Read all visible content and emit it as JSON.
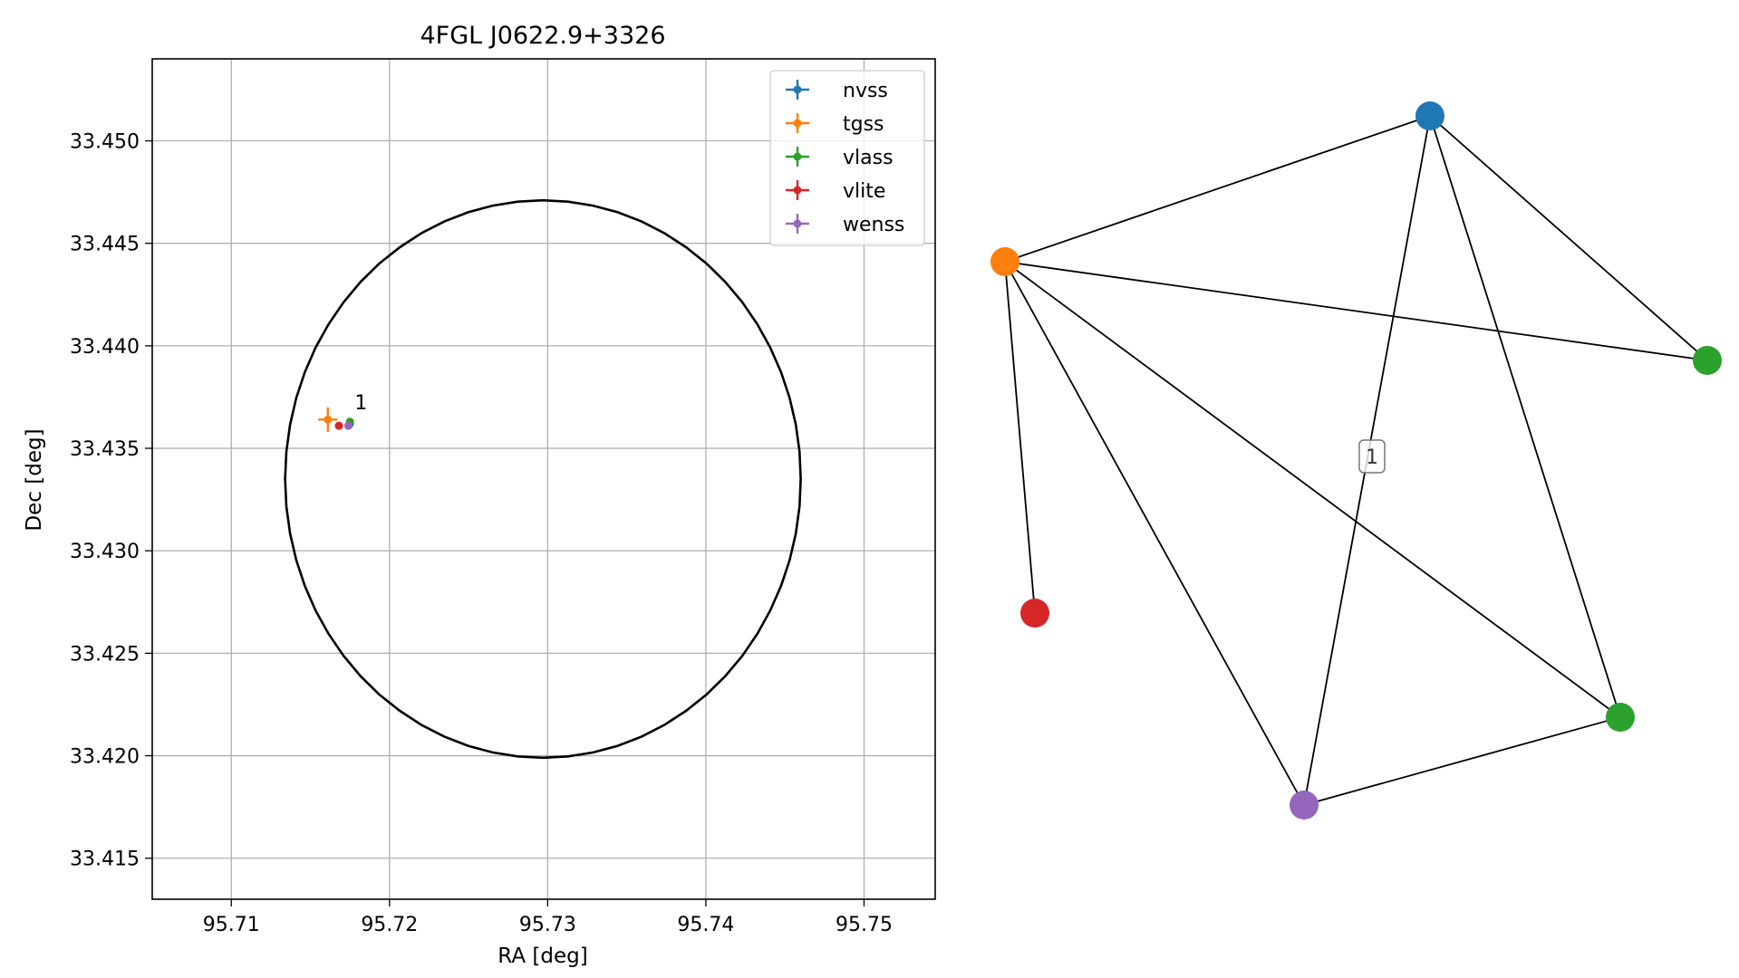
{
  "chart_data": [
    {
      "type": "scatter",
      "title": "4FGL J0622.9+3326",
      "xlabel": "RA [deg]",
      "ylabel": "Dec [deg]",
      "xlim": [
        95.705,
        95.7545
      ],
      "ylim": [
        33.413,
        33.454
      ],
      "x_ticks": [
        95.71,
        95.72,
        95.73,
        95.74,
        95.75
      ],
      "x_tick_labels": [
        "95.71",
        "95.72",
        "95.73",
        "95.74",
        "95.75"
      ],
      "y_ticks": [
        33.415,
        33.42,
        33.425,
        33.43,
        33.435,
        33.44,
        33.445,
        33.45
      ],
      "y_tick_labels": [
        "33.415",
        "33.420",
        "33.425",
        "33.430",
        "33.435",
        "33.440",
        "33.445",
        "33.450"
      ],
      "grid": true,
      "legend_position": "top-right",
      "ellipse": {
        "center_ra": 95.7297,
        "center_dec": 33.4335,
        "semi_ra": 0.0163,
        "semi_dec": 0.0136,
        "color": "#000000"
      },
      "series": [
        {
          "name": "nvss",
          "color": "#1f77b4",
          "points": [
            {
              "ra": 95.7175,
              "dec": 33.4362,
              "ra_err": 0.0002,
              "dec_err": 0.0002
            }
          ]
        },
        {
          "name": "tgss",
          "color": "#ff7f0e",
          "points": [
            {
              "ra": 95.7161,
              "dec": 33.4364,
              "ra_err": 0.0006,
              "dec_err": 0.0006
            }
          ]
        },
        {
          "name": "vlass",
          "color": "#2ca02c",
          "points": [
            {
              "ra": 95.7175,
              "dec": 33.4363,
              "ra_err": 0.0001,
              "dec_err": 0.0001
            }
          ]
        },
        {
          "name": "vlite",
          "color": "#d62728",
          "points": [
            {
              "ra": 95.7168,
              "dec": 33.4361,
              "ra_err": 0.0001,
              "dec_err": 0.0001
            }
          ]
        },
        {
          "name": "wenss",
          "color": "#9467bd",
          "points": [
            {
              "ra": 95.7174,
              "dec": 33.4361,
              "ra_err": 0.0001,
              "dec_err": 0.0001
            }
          ]
        }
      ],
      "annotations": [
        {
          "text": "1",
          "ra": 95.7178,
          "dec": 33.4369
        }
      ]
    },
    {
      "type": "network",
      "nodes": [
        {
          "id": "nvss",
          "color": "#1f77b4"
        },
        {
          "id": "tgss",
          "color": "#ff7f0e"
        },
        {
          "id": "vlass_a",
          "color": "#2ca02c"
        },
        {
          "id": "vlite",
          "color": "#d62728"
        },
        {
          "id": "vlass_b",
          "color": "#2ca02c"
        },
        {
          "id": "wenss",
          "color": "#9467bd"
        }
      ],
      "edges": [
        [
          "tgss",
          "nvss"
        ],
        [
          "tgss",
          "vlass_a"
        ],
        [
          "tgss",
          "vlite"
        ],
        [
          "tgss",
          "vlass_b"
        ],
        [
          "tgss",
          "wenss"
        ],
        [
          "nvss",
          "vlass_a"
        ],
        [
          "nvss",
          "vlass_b"
        ],
        [
          "nvss",
          "wenss"
        ],
        [
          "wenss",
          "vlass_b"
        ]
      ],
      "cluster_label": "1"
    }
  ]
}
